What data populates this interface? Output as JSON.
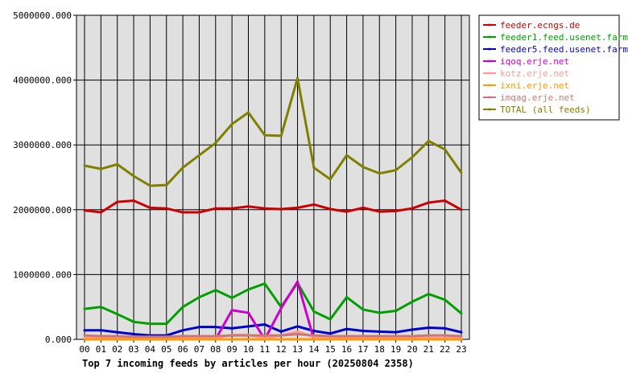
{
  "chart_data": {
    "type": "line",
    "title": "Top 7 incoming feeds by articles per hour (20250804 2358)",
    "ylim": [
      0,
      5000000
    ],
    "y_ticks": [
      "0.000",
      "1000000.000",
      "2000000.000",
      "3000000.000",
      "4000000.000",
      "5000000.000"
    ],
    "categories": [
      "00",
      "01",
      "02",
      "03",
      "04",
      "05",
      "06",
      "07",
      "08",
      "09",
      "10",
      "11",
      "12",
      "13",
      "14",
      "15",
      "16",
      "17",
      "18",
      "19",
      "20",
      "21",
      "22",
      "23"
    ],
    "grid": true,
    "legend_position": "top-right",
    "series": [
      {
        "name": "feeder.ecngs.de",
        "color": "#cc0000",
        "values": [
          1990000,
          1960000,
          2120000,
          2140000,
          2030000,
          2020000,
          1960000,
          1960000,
          2020000,
          2020000,
          2050000,
          2020000,
          2010000,
          2030000,
          2080000,
          2010000,
          1970000,
          2030000,
          1970000,
          1980000,
          2020000,
          2110000,
          2140000,
          2000000
        ]
      },
      {
        "name": "feeder1.feed.usenet.farm",
        "color": "#00a000",
        "values": [
          470000,
          500000,
          390000,
          270000,
          240000,
          240000,
          500000,
          650000,
          760000,
          640000,
          770000,
          860000,
          500000,
          870000,
          430000,
          310000,
          650000,
          460000,
          410000,
          440000,
          580000,
          700000,
          610000,
          400000
        ]
      },
      {
        "name": "feeder5.feed.usenet.farm",
        "color": "#0000cc",
        "values": [
          140000,
          140000,
          110000,
          80000,
          60000,
          60000,
          140000,
          190000,
          190000,
          170000,
          200000,
          230000,
          120000,
          200000,
          130000,
          90000,
          160000,
          130000,
          120000,
          110000,
          150000,
          180000,
          170000,
          110000
        ]
      },
      {
        "name": "iqoq.erje.net",
        "color": "#cc00cc",
        "values": [
          0,
          0,
          0,
          0,
          0,
          0,
          0,
          0,
          0,
          450000,
          410000,
          0,
          480000,
          890000,
          0,
          0,
          0,
          0,
          0,
          0,
          0,
          0,
          0,
          0
        ]
      },
      {
        "name": "kotz.erje.net",
        "color": "#ff9999",
        "values": [
          20000,
          20000,
          20000,
          20000,
          20000,
          20000,
          20000,
          20000,
          20000,
          70000,
          70000,
          20000,
          60000,
          120000,
          40000,
          20000,
          20000,
          20000,
          20000,
          20000,
          20000,
          20000,
          20000,
          20000
        ]
      },
      {
        "name": "ixni.erje.net",
        "color": "#ff9900",
        "values": [
          0,
          0,
          0,
          0,
          0,
          0,
          0,
          0,
          0,
          0,
          0,
          0,
          0,
          0,
          0,
          0,
          0,
          0,
          0,
          0,
          0,
          0,
          0,
          0
        ]
      },
      {
        "name": "imqag.erje.net",
        "color": "#cc7777",
        "values": [
          60000,
          50000,
          50000,
          40000,
          40000,
          40000,
          50000,
          50000,
          50000,
          60000,
          60000,
          60000,
          60000,
          80000,
          60000,
          50000,
          50000,
          50000,
          50000,
          50000,
          50000,
          60000,
          60000,
          50000
        ]
      },
      {
        "name": "TOTAL (all feeds)",
        "color": "#808000",
        "values": [
          2680000,
          2630000,
          2700000,
          2520000,
          2370000,
          2380000,
          2650000,
          2840000,
          3030000,
          3320000,
          3500000,
          3150000,
          3140000,
          4030000,
          2650000,
          2470000,
          2840000,
          2660000,
          2560000,
          2610000,
          2810000,
          3060000,
          2930000,
          2570000
        ]
      }
    ]
  }
}
